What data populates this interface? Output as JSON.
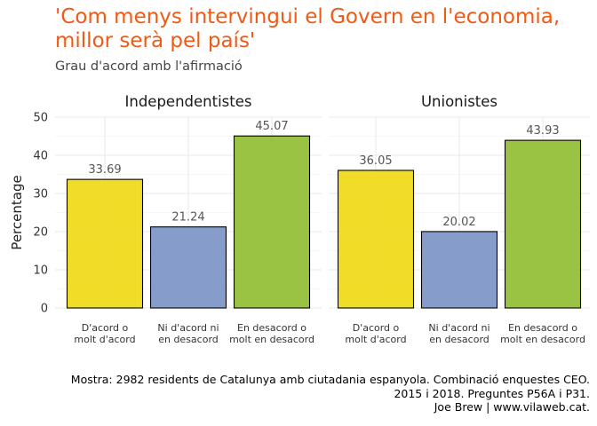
{
  "title": "'Com menys intervingui el Govern en l'economia,\nmillor serà pel país'",
  "subtitle": "Grau d'acord amb l'afirmació",
  "caption": [
    "Mostra: 2982 residents de Catalunya amb ciutadania espanyola. Combinació enquestes CEO.",
    "2015 i 2018. Preguntes P56A i P31.",
    "Joe Brew | www.vilaweb.cat."
  ],
  "chart_data": {
    "type": "bar",
    "ylabel": "Percentage",
    "ylim": [
      0,
      50
    ],
    "yticks": [
      "0",
      "10",
      "20",
      "30",
      "40",
      "50"
    ],
    "grid": true,
    "categories": [
      "D'acord o\nmolt d'acord",
      "Ni d'acord ni\nen desacord",
      "En desacord o\nmolt en desacord"
    ],
    "colors": [
      "#f0db1c",
      "#7f98c8",
      "#95bf39"
    ],
    "panels": [
      {
        "name": "Independentistes",
        "values": [
          33.69,
          21.24,
          45.07
        ],
        "labels": [
          "33.69",
          "21.24",
          "45.07"
        ]
      },
      {
        "name": "Unionistes",
        "values": [
          36.05,
          20.02,
          43.93
        ],
        "labels": [
          "36.05",
          "20.02",
          "43.93"
        ]
      }
    ]
  }
}
